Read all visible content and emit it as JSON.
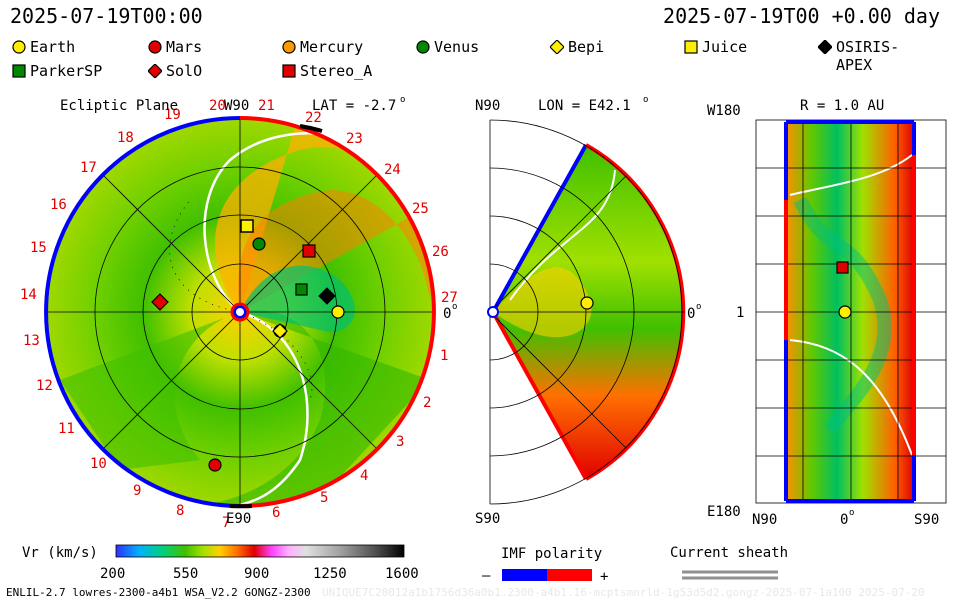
{
  "header": {
    "date_left": "2025-07-19T00:00",
    "date_right": "2025-07-19T00 +0.00 day"
  },
  "legend": [
    {
      "name": "Earth",
      "shape": "circle",
      "color": "#ffee00"
    },
    {
      "name": "Mars",
      "shape": "circle",
      "color": "#e00000"
    },
    {
      "name": "Mercury",
      "shape": "circle",
      "color": "#ff9900"
    },
    {
      "name": "Venus",
      "shape": "circle",
      "color": "#008800"
    },
    {
      "name": "Bepi",
      "shape": "diamond",
      "color": "#ffee00"
    },
    {
      "name": "Juice",
      "shape": "square",
      "color": "#ffee00"
    },
    {
      "name": "OSIRIS-APEX",
      "shape": "diamond",
      "color": "#000000"
    },
    {
      "name": "ParkerSP",
      "shape": "square",
      "color": "#008800"
    },
    {
      "name": "SolO",
      "shape": "diamond",
      "color": "#e00000"
    },
    {
      "name": "Stereo_A",
      "shape": "square",
      "color": "#e00000"
    }
  ],
  "panels": {
    "ecliptic": {
      "title": "Ecliptic Plane",
      "top": "W90",
      "bottom": "E90",
      "right": "0",
      "lat": "LAT = -2.7",
      "lat_sup": "o"
    },
    "meridional": {
      "top": "N90",
      "bottom": "S90",
      "right": "0",
      "lon": "LON = E42.1",
      "lon_sup": "o"
    },
    "sphere": {
      "top_left": "W180",
      "bottom_left": "E180",
      "left_mid": "1",
      "r": "R = 1.0 AU",
      "bottom_left2": "N90",
      "bottom_mid": "0",
      "bottom_right": "S90"
    }
  },
  "colorbar": {
    "label": "Vr (km/s)",
    "ticks": [
      "200",
      "550",
      "900",
      "1250",
      "1600"
    ],
    "stops": [
      "#3030ff",
      "#00b0ff",
      "#00d080",
      "#40c000",
      "#a0e000",
      "#ffd000",
      "#ff7000",
      "#e00000",
      "#ff40ff",
      "#ffb0ff",
      "#d0d0d0",
      "#909090",
      "#404040",
      "#000000"
    ]
  },
  "imf": {
    "label": "IMF polarity",
    "minus": "–",
    "plus": "+",
    "neg_color": "#0000ff",
    "pos_color": "#ff0000"
  },
  "sheath": {
    "label": "Current sheath"
  },
  "footer": {
    "left": "ENLIL-2.7 lowres-2300-a4b1 WSA_V2.2 GONGZ-2300",
    "right": "UNIQUE7C20012a1b1756d36a0b1.2300-a4b1.16-mcptsmnrld-1g53d5d2.gongz-2025-07-1a100  2025-07-20"
  },
  "chart_data": {
    "type": "heatmap",
    "title": "Ecliptic Plane",
    "longitude_ticks_red": [
      "19",
      "20",
      "21",
      "22",
      "23",
      "24",
      "25",
      "26",
      "27",
      "1",
      "2",
      "3",
      "4",
      "5",
      "6",
      "7",
      "8",
      "9",
      "10",
      "11",
      "12",
      "13",
      "14",
      "15",
      "16",
      "17",
      "18"
    ],
    "colorbar_range": [
      200,
      1600
    ],
    "colorbar_label": "Vr (km/s)"
  }
}
